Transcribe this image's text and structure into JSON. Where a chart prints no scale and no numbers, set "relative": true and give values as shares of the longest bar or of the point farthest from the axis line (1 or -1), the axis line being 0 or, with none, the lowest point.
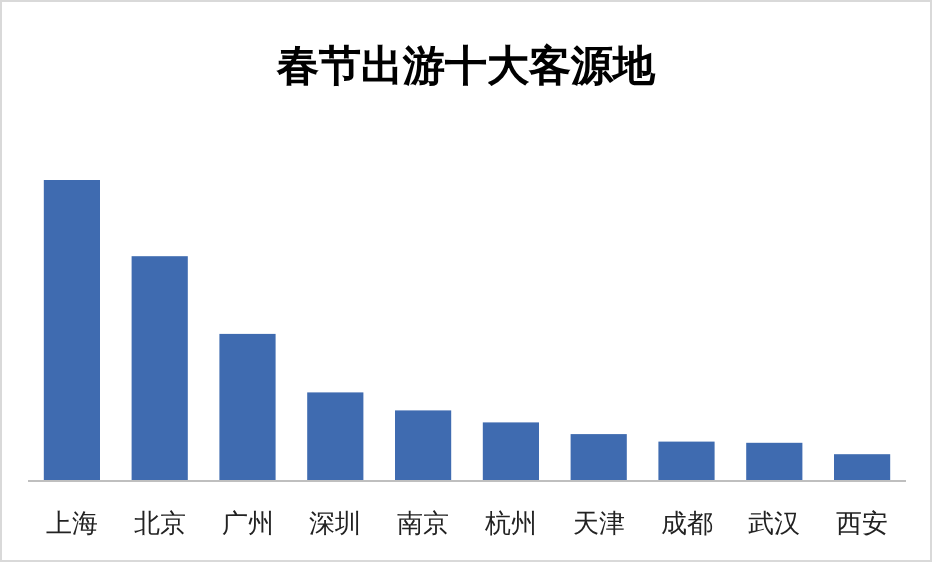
{
  "chart_data": {
    "type": "bar",
    "title": "春节出游十大客源地",
    "relative": true,
    "categories": [
      "上海",
      "北京",
      "广州",
      "深圳",
      "南京",
      "杭州",
      "天津",
      "成都",
      "武汉",
      "西安"
    ],
    "values": [
      1,
      0.746,
      0.487,
      0.292,
      0.232,
      0.192,
      0.153,
      0.128,
      0.124,
      0.086
    ],
    "color": "#3f6bb0"
  }
}
